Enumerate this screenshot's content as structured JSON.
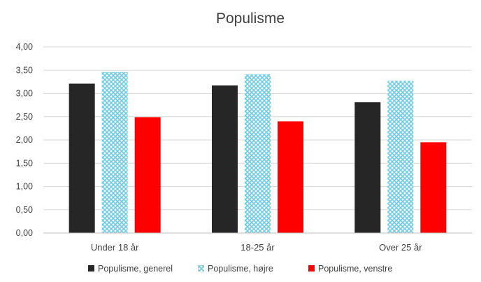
{
  "chart_data": {
    "type": "bar",
    "title": "Populisme",
    "categories": [
      "Under 18 år",
      "18-25 år",
      "Over 25 år"
    ],
    "series": [
      {
        "name": "Populisme, generel",
        "values": [
          3.21,
          3.17,
          2.81
        ],
        "color": "#262626",
        "pattern": "solid"
      },
      {
        "name": "Populisme, højre",
        "values": [
          3.46,
          3.41,
          3.27
        ],
        "color": "#7fd3e8",
        "pattern": "crosshatch"
      },
      {
        "name": "Populisme, venstre",
        "values": [
          2.49,
          2.4,
          1.95
        ],
        "color": "#ff0000",
        "pattern": "solid"
      }
    ],
    "ylim": [
      0,
      4
    ],
    "yticks": [
      "0,00",
      "0,50",
      "1,00",
      "1,50",
      "2,00",
      "2,50",
      "3,00",
      "3,50",
      "4,00"
    ],
    "grid": true,
    "legend_position": "bottom"
  }
}
